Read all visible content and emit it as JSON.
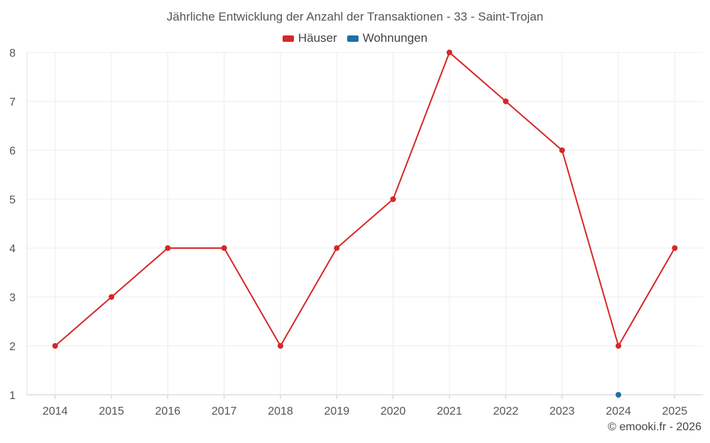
{
  "chart_data": {
    "type": "line",
    "title": "Jährliche Entwicklung der Anzahl der Transaktionen - 33 - Saint-Trojan",
    "x": [
      "2014",
      "2015",
      "2016",
      "2017",
      "2018",
      "2019",
      "2020",
      "2021",
      "2022",
      "2023",
      "2024",
      "2025"
    ],
    "series": [
      {
        "name": "Häuser",
        "color": "#d62728",
        "values": [
          2,
          3,
          4,
          4,
          2,
          4,
          5,
          8,
          7,
          6,
          2,
          4
        ]
      },
      {
        "name": "Wohnungen",
        "color": "#1f6fa8",
        "values": [
          null,
          null,
          null,
          null,
          null,
          null,
          null,
          null,
          null,
          null,
          1,
          null
        ]
      }
    ],
    "ylim": [
      1,
      8
    ],
    "yticks": [
      1,
      2,
      3,
      4,
      5,
      6,
      7,
      8
    ],
    "grid": true,
    "legend": "top-center",
    "xlabel": "",
    "ylabel": ""
  },
  "credit": "© emooki.fr - 2026"
}
